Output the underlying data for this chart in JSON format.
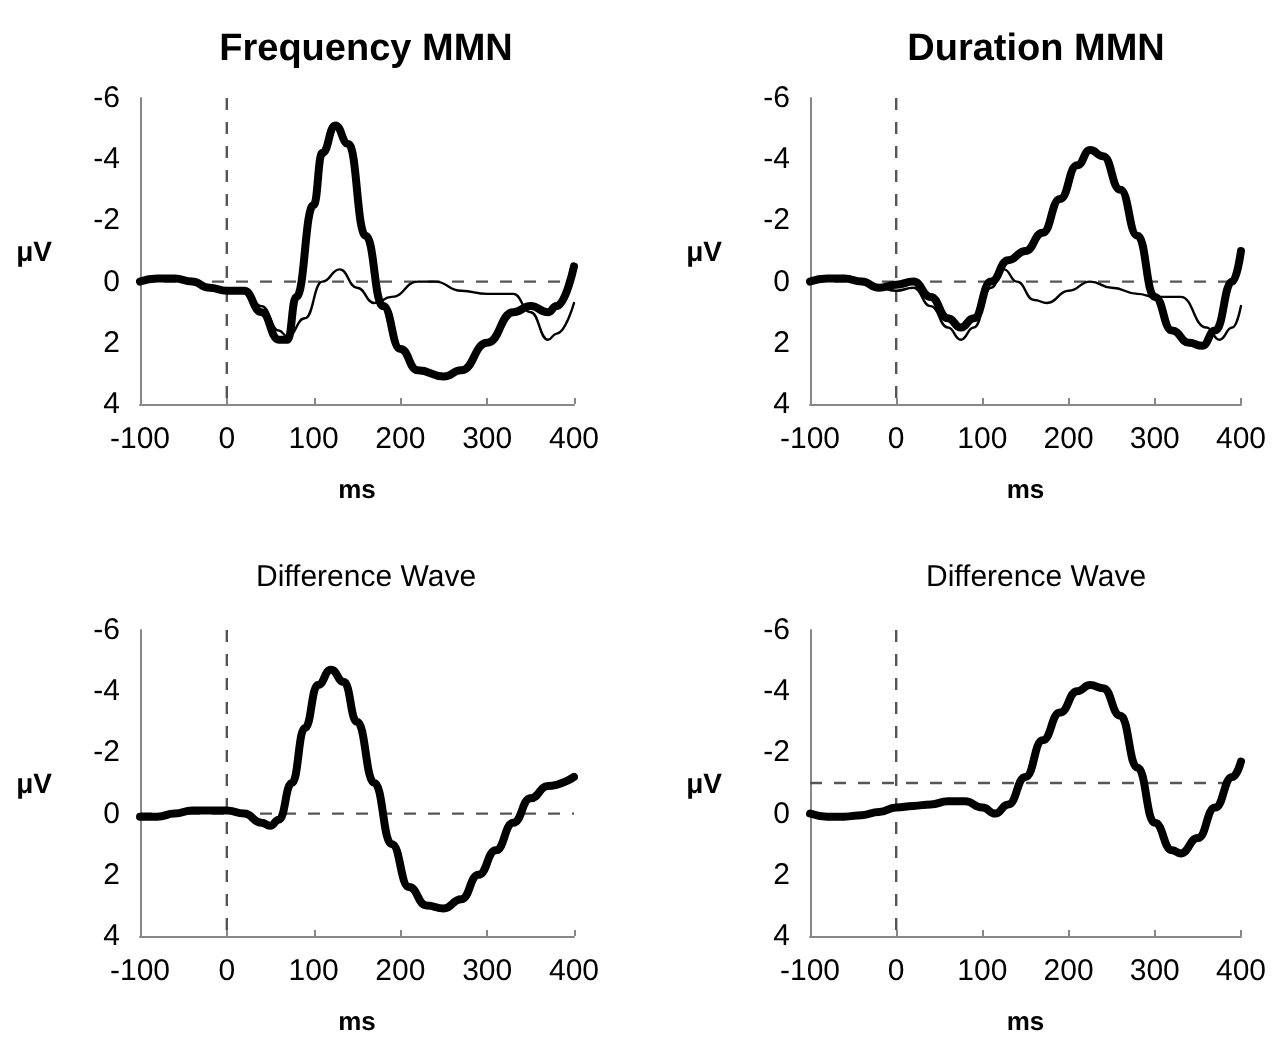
{
  "chart_data": [
    {
      "type": "line",
      "title": "Frequency MMN",
      "xlabel": "ms",
      "ylabel": "μV",
      "xlim": [
        -100,
        400
      ],
      "xticks": [
        -100,
        0,
        100,
        200,
        300,
        400
      ],
      "ylim": [
        4,
        -6
      ],
      "yticks": [
        4,
        2,
        0,
        -2,
        -4,
        -6
      ],
      "grid": false,
      "marker": "none",
      "line_style": "solid",
      "ref_lines": [
        {
          "axis": "x",
          "value": 0,
          "line_style": "dashed"
        },
        {
          "axis": "y",
          "value": 0,
          "line_style": "dashed"
        }
      ],
      "series": [
        {
          "color": "#000000",
          "x": [
            -100,
            -80,
            -60,
            -40,
            -20,
            0,
            20,
            40,
            60,
            70,
            80,
            100,
            110,
            125,
            140,
            160,
            180,
            200,
            220,
            250,
            270,
            300,
            330,
            350,
            370,
            380,
            400
          ],
          "values": [
            0,
            -0.1,
            -0.1,
            0,
            0.2,
            0.3,
            0.3,
            1.0,
            1.9,
            1.9,
            0.5,
            -2.5,
            -4.2,
            -5.1,
            -4.5,
            -1.5,
            0.8,
            2.2,
            2.9,
            3.1,
            2.9,
            2.0,
            1.0,
            0.8,
            1.0,
            0.8,
            -0.5
          ]
        },
        {
          "color": "#000000",
          "x": [
            -100,
            -60,
            -20,
            0,
            20,
            40,
            60,
            70,
            90,
            110,
            130,
            150,
            170,
            190,
            220,
            240,
            270,
            300,
            330,
            350,
            370,
            380,
            400
          ],
          "values": [
            0,
            -0.1,
            0.2,
            0.3,
            0.3,
            0.8,
            1.6,
            1.8,
            1.2,
            0,
            -0.4,
            0.2,
            0.7,
            0.5,
            0,
            0,
            0.3,
            0.4,
            0.4,
            1.0,
            1.9,
            1.7,
            0.7
          ]
        }
      ]
    },
    {
      "type": "line",
      "title": "Duration MMN",
      "xlabel": "ms",
      "ylabel": "μV",
      "xlim": [
        -100,
        400
      ],
      "xticks": [
        -100,
        0,
        100,
        200,
        300,
        400
      ],
      "ylim": [
        4,
        -6
      ],
      "yticks": [
        4,
        2,
        0,
        -2,
        -4,
        -6
      ],
      "grid": false,
      "marker": "none",
      "line_style": "solid",
      "ref_lines": [
        {
          "axis": "x",
          "value": 0,
          "line_style": "dashed"
        },
        {
          "axis": "y",
          "value": 0,
          "line_style": "dashed"
        }
      ],
      "series": [
        {
          "color": "#000000",
          "x": [
            -100,
            -80,
            -60,
            -40,
            -20,
            0,
            20,
            40,
            60,
            75,
            90,
            110,
            130,
            150,
            170,
            190,
            210,
            225,
            240,
            260,
            280,
            300,
            320,
            340,
            355,
            370,
            390,
            400
          ],
          "values": [
            0,
            -0.1,
            -0.1,
            0,
            0.2,
            0.1,
            0,
            0.5,
            1.2,
            1.5,
            1.2,
            0,
            -0.7,
            -1.0,
            -1.6,
            -2.7,
            -3.8,
            -4.3,
            -4.1,
            -3.0,
            -1.5,
            0.5,
            1.6,
            2.0,
            2.1,
            1.6,
            0,
            -1.0
          ]
        },
        {
          "color": "#000000",
          "x": [
            -100,
            -60,
            -20,
            0,
            20,
            40,
            60,
            75,
            90,
            110,
            125,
            140,
            160,
            175,
            200,
            225,
            250,
            280,
            300,
            330,
            360,
            375,
            390,
            400
          ],
          "values": [
            0,
            -0.1,
            0.2,
            0.3,
            0.2,
            0.8,
            1.5,
            1.9,
            1.5,
            0.2,
            -0.4,
            0,
            0.6,
            0.7,
            0.3,
            0,
            0.2,
            0.4,
            0.5,
            0.5,
            1.5,
            1.9,
            1.5,
            0.8
          ]
        }
      ]
    },
    {
      "type": "line",
      "title": "Difference Wave",
      "xlabel": "ms",
      "ylabel": "μV",
      "xlim": [
        -100,
        400
      ],
      "xticks": [
        -100,
        0,
        100,
        200,
        300,
        400
      ],
      "ylim": [
        4,
        -6
      ],
      "yticks": [
        4,
        2,
        0,
        -2,
        -4,
        -6
      ],
      "grid": false,
      "marker": "none",
      "line_style": "solid",
      "ref_lines": [
        {
          "axis": "x",
          "value": 0,
          "line_style": "dashed"
        },
        {
          "axis": "y",
          "value": 0,
          "line_style": "dashed"
        }
      ],
      "series": [
        {
          "color": "#000000",
          "x": [
            -100,
            -80,
            -60,
            -40,
            -20,
            0,
            20,
            40,
            50,
            60,
            75,
            90,
            105,
            120,
            135,
            150,
            170,
            190,
            210,
            230,
            250,
            270,
            290,
            310,
            330,
            350,
            370,
            400
          ],
          "values": [
            0.1,
            0.1,
            0,
            -0.1,
            -0.1,
            -0.1,
            0,
            0.3,
            0.4,
            0.2,
            -1.0,
            -2.8,
            -4.2,
            -4.7,
            -4.3,
            -3.0,
            -1.0,
            1.0,
            2.4,
            3.0,
            3.1,
            2.8,
            2.0,
            1.2,
            0.3,
            -0.5,
            -0.9,
            -1.2
          ]
        }
      ]
    },
    {
      "type": "line",
      "title": "Difference Wave",
      "xlabel": "ms",
      "ylabel": "μV",
      "xlim": [
        -100,
        400
      ],
      "xticks": [
        -100,
        0,
        100,
        200,
        300,
        400
      ],
      "ylim": [
        4,
        -6
      ],
      "yticks": [
        4,
        2,
        0,
        -2,
        -4,
        -6
      ],
      "grid": false,
      "marker": "none",
      "line_style": "solid",
      "ref_lines": [
        {
          "axis": "x",
          "value": 0,
          "line_style": "dashed"
        },
        {
          "axis": "y",
          "value": -1,
          "line_style": "dashed"
        }
      ],
      "series": [
        {
          "color": "#000000",
          "x": [
            -100,
            -80,
            -60,
            -40,
            -20,
            0,
            20,
            40,
            60,
            80,
            100,
            115,
            130,
            150,
            170,
            190,
            210,
            225,
            240,
            260,
            280,
            300,
            320,
            330,
            350,
            370,
            390,
            400
          ],
          "values": [
            0,
            0.1,
            0.1,
            0.05,
            -0.05,
            -0.2,
            -0.25,
            -0.3,
            -0.4,
            -0.4,
            -0.2,
            0,
            -0.3,
            -1.2,
            -2.4,
            -3.3,
            -4.0,
            -4.2,
            -4.1,
            -3.2,
            -1.5,
            0.3,
            1.2,
            1.3,
            0.8,
            -0.2,
            -1.2,
            -1.7
          ]
        }
      ]
    }
  ]
}
